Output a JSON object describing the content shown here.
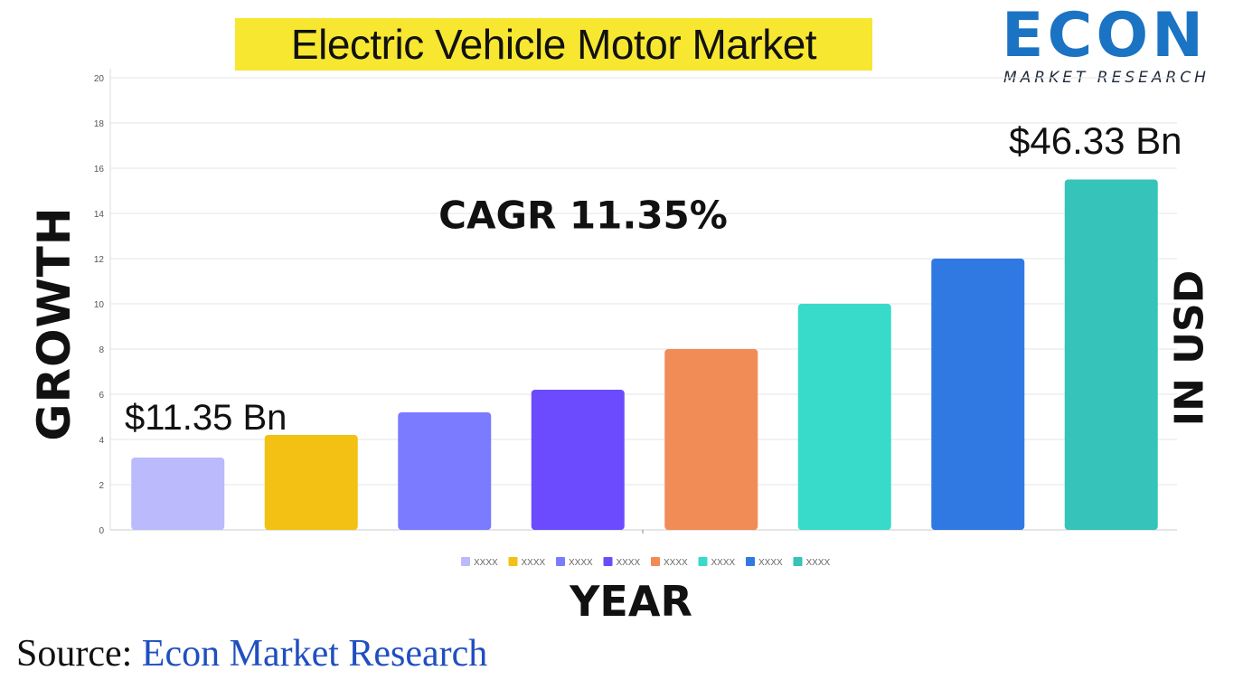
{
  "header": {
    "title": "Electric Vehicle Motor Market",
    "logo_word": "ECON",
    "logo_sub": "MARKET RESEARCH"
  },
  "annotations": {
    "cagr": "CAGR 11.35%",
    "first_value": "$11.35 Bn",
    "last_value": "$46.33 Bn"
  },
  "footer": {
    "source_label": "Source:",
    "source_name": "Econ Market Research"
  },
  "chart_data": {
    "type": "bar",
    "title": "Electric Vehicle Motor Market",
    "xlabel": "YEAR",
    "ylabel": "GROWTH",
    "ylabel_right": "IN USD",
    "ylim": [
      0,
      20
    ],
    "yticks": [
      "0",
      "2",
      "4",
      "6",
      "8",
      "10",
      "12",
      "14",
      "16",
      "18",
      "20"
    ],
    "grid": true,
    "legend": "bottom",
    "categories": [
      "XXXX",
      "XXXX",
      "XXXX",
      "XXXX",
      "XXXX",
      "XXXX",
      "XXXX",
      "XXXX"
    ],
    "values": [
      3.2,
      4.2,
      5.2,
      6.2,
      8.0,
      10.0,
      12.0,
      15.5
    ],
    "colors": [
      "#babafc",
      "#f2c114",
      "#7b7bff",
      "#6c4bff",
      "#f28c57",
      "#38dbc9",
      "#3079e2",
      "#35c3ba"
    ]
  }
}
